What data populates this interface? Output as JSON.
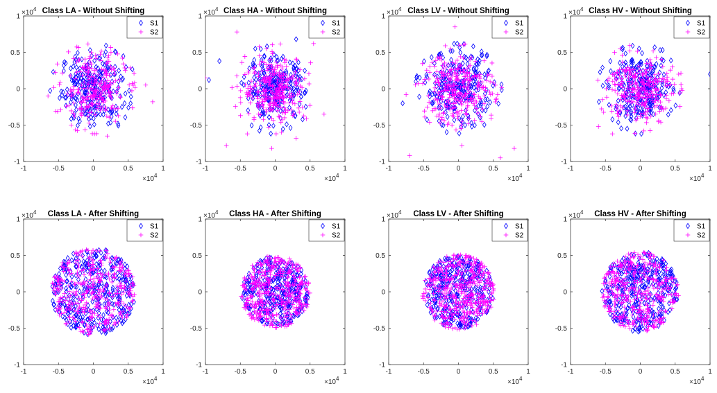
{
  "colors": {
    "S1": "#0000ff",
    "S2": "#ff00ff"
  },
  "chart_data": [
    {
      "type": "scatter",
      "title": "Class LA - Without Shifting",
      "xlim": [
        -1,
        1
      ],
      "ylim": [
        -1,
        1
      ],
      "x_exponent": "4",
      "y_exponent": "4",
      "x_multiplier_text": "×10",
      "y_multiplier_text": "×10",
      "xticks": [
        "-1",
        "-0.5",
        "0",
        "0.5",
        "1"
      ],
      "yticks": [
        "-1",
        "-0.5",
        "0",
        "0.5",
        "1"
      ],
      "legend": {
        "position": "top-right",
        "entries": [
          {
            "label": "S1",
            "marker": "diamond",
            "color": "#0000ff"
          },
          {
            "label": "S2",
            "marker": "plus",
            "color": "#ff00ff"
          }
        ]
      },
      "series": [
        {
          "name": "S1",
          "marker": "diamond",
          "color": "#0000ff",
          "spread": [
            0.55,
            0.6
          ],
          "points": 260,
          "outliers": []
        },
        {
          "name": "S2",
          "marker": "plus",
          "color": "#ff00ff",
          "spread": [
            0.55,
            0.6
          ],
          "points": 260,
          "outliers": [
            [
              0.85,
              -0.18
            ],
            [
              0.75,
              0.05
            ],
            [
              0.2,
              -0.65
            ],
            [
              -0.65,
              -0.1
            ]
          ]
        }
      ]
    },
    {
      "type": "scatter",
      "title": "Class HA - Without Shifting",
      "xlim": [
        -1,
        1
      ],
      "ylim": [
        -1,
        1
      ],
      "x_exponent": "4",
      "y_exponent": "4",
      "x_multiplier_text": "×10",
      "y_multiplier_text": "×10",
      "xticks": [
        "-1",
        "-0.5",
        "0",
        "0.5",
        "1"
      ],
      "yticks": [
        "-1",
        "-0.5",
        "0",
        "0.5",
        "1"
      ],
      "legend": {
        "position": "top-right",
        "entries": [
          {
            "label": "S1",
            "marker": "diamond",
            "color": "#0000ff"
          },
          {
            "label": "S2",
            "marker": "plus",
            "color": "#ff00ff"
          }
        ]
      },
      "series": [
        {
          "name": "S1",
          "marker": "diamond",
          "color": "#0000ff",
          "spread": [
            0.5,
            0.5
          ],
          "points": 260,
          "outliers": [
            [
              -0.8,
              0.38
            ],
            [
              0.3,
              0.68
            ],
            [
              -0.95,
              0.12
            ]
          ]
        },
        {
          "name": "S2",
          "marker": "plus",
          "color": "#ff00ff",
          "spread": [
            0.55,
            0.55
          ],
          "points": 300,
          "outliers": [
            [
              -0.55,
              0.78
            ],
            [
              -0.7,
              -0.78
            ],
            [
              -0.05,
              -0.82
            ],
            [
              0.7,
              -0.35
            ],
            [
              -0.4,
              -0.62
            ],
            [
              0.55,
              0.62
            ],
            [
              0.3,
              -0.68
            ],
            [
              -1.0,
              0.15
            ]
          ]
        }
      ]
    },
    {
      "type": "scatter",
      "title": "Class LV - Without Shifting",
      "xlim": [
        -1,
        1
      ],
      "ylim": [
        -1,
        1
      ],
      "x_exponent": "4",
      "y_exponent": "4",
      "x_multiplier_text": "×10",
      "y_multiplier_text": "×10",
      "xticks": [
        "-1",
        "-0.5",
        "0",
        "0.5",
        "1"
      ],
      "yticks": [
        "-1",
        "-0.5",
        "0",
        "0.5",
        "1"
      ],
      "legend": {
        "position": "top-right",
        "entries": [
          {
            "label": "S1",
            "marker": "diamond",
            "color": "#0000ff"
          },
          {
            "label": "S2",
            "marker": "plus",
            "color": "#ff00ff"
          }
        ]
      },
      "series": [
        {
          "name": "S1",
          "marker": "diamond",
          "color": "#0000ff",
          "spread": [
            0.6,
            0.6
          ],
          "points": 260,
          "outliers": [
            [
              -0.8,
              -0.2
            ]
          ]
        },
        {
          "name": "S2",
          "marker": "plus",
          "color": "#ff00ff",
          "spread": [
            0.6,
            0.6
          ],
          "points": 300,
          "outliers": [
            [
              -0.05,
              0.85
            ],
            [
              -0.7,
              -0.92
            ],
            [
              0.8,
              -0.82
            ],
            [
              0.6,
              -0.95
            ],
            [
              0.05,
              -0.78
            ],
            [
              -0.75,
              -0.08
            ]
          ]
        }
      ]
    },
    {
      "type": "scatter",
      "title": "Class HV - Without Shifting",
      "xlim": [
        -1,
        1
      ],
      "ylim": [
        -1,
        1
      ],
      "x_exponent": "4",
      "y_exponent": "4",
      "x_multiplier_text": "×10",
      "y_multiplier_text": "×10",
      "xticks": [
        "-1",
        "-0.5",
        "0",
        "0.5",
        "1"
      ],
      "yticks": [
        "-1",
        "-0.5",
        "0",
        "0.5",
        "1"
      ],
      "legend": {
        "position": "top-right",
        "entries": [
          {
            "label": "S1",
            "marker": "diamond",
            "color": "#0000ff"
          },
          {
            "label": "S2",
            "marker": "plus",
            "color": "#ff00ff"
          }
        ]
      },
      "series": [
        {
          "name": "S1",
          "marker": "diamond",
          "color": "#0000ff",
          "spread": [
            0.55,
            0.55
          ],
          "points": 260,
          "outliers": [
            [
              1.0,
              0.2
            ]
          ]
        },
        {
          "name": "S2",
          "marker": "plus",
          "color": "#ff00ff",
          "spread": [
            0.55,
            0.55
          ],
          "points": 280,
          "outliers": [
            [
              -0.6,
              -0.52
            ],
            [
              0.55,
              0.2
            ],
            [
              -0.4,
              -0.62
            ],
            [
              0.05,
              -0.58
            ]
          ]
        }
      ]
    },
    {
      "type": "scatter",
      "title": "Class LA - After Shifting",
      "xlim": [
        -1,
        1
      ],
      "ylim": [
        -1,
        1
      ],
      "x_exponent": "4",
      "y_exponent": "4",
      "x_multiplier_text": "×10",
      "y_multiplier_text": "×10",
      "xticks": [
        "-1",
        "-0.5",
        "0",
        "0.5",
        "1"
      ],
      "yticks": [
        "-1",
        "-0.5",
        "0",
        "0.5",
        "1"
      ],
      "legend": {
        "position": "top-right",
        "entries": [
          {
            "label": "S1",
            "marker": "diamond",
            "color": "#0000ff"
          },
          {
            "label": "S2",
            "marker": "plus",
            "color": "#ff00ff"
          }
        ]
      },
      "series": [
        {
          "name": "S1",
          "marker": "diamond",
          "color": "#0000ff",
          "radius": 0.6,
          "points": 360
        },
        {
          "name": "S2",
          "marker": "plus",
          "color": "#ff00ff",
          "radius": 0.6,
          "points": 360
        }
      ]
    },
    {
      "type": "scatter",
      "title": "Class HA - After Shifting",
      "xlim": [
        -1,
        1
      ],
      "ylim": [
        -1,
        1
      ],
      "x_exponent": "4",
      "y_exponent": "4",
      "x_multiplier_text": "×10",
      "y_multiplier_text": "×10",
      "xticks": [
        "-1",
        "-0.5",
        "0",
        "0.5",
        "1"
      ],
      "yticks": [
        "-1",
        "-0.5",
        "0",
        "0.5",
        "1"
      ],
      "legend": {
        "position": "top-right",
        "entries": [
          {
            "label": "S1",
            "marker": "diamond",
            "color": "#0000ff"
          },
          {
            "label": "S2",
            "marker": "plus",
            "color": "#ff00ff"
          }
        ]
      },
      "series": [
        {
          "name": "S1",
          "marker": "diamond",
          "color": "#0000ff",
          "radius": 0.48,
          "points": 340
        },
        {
          "name": "S2",
          "marker": "plus",
          "color": "#ff00ff",
          "radius": 0.5,
          "points": 420
        }
      ]
    },
    {
      "type": "scatter",
      "title": "Class LV - After Shifting",
      "xlim": [
        -1,
        1
      ],
      "ylim": [
        -1,
        1
      ],
      "x_exponent": "4",
      "y_exponent": "4",
      "x_multiplier_text": "×10",
      "y_multiplier_text": "×10",
      "xticks": [
        "-1",
        "-0.5",
        "0",
        "0.5",
        "1"
      ],
      "yticks": [
        "-1",
        "-0.5",
        "0",
        "0.5",
        "1"
      ],
      "legend": {
        "position": "top-right",
        "entries": [
          {
            "label": "S1",
            "marker": "diamond",
            "color": "#0000ff"
          },
          {
            "label": "S2",
            "marker": "plus",
            "color": "#ff00ff"
          }
        ]
      },
      "series": [
        {
          "name": "S1",
          "marker": "diamond",
          "color": "#0000ff",
          "radius": 0.5,
          "points": 340
        },
        {
          "name": "S2",
          "marker": "plus",
          "color": "#ff00ff",
          "radius": 0.52,
          "points": 420
        }
      ]
    },
    {
      "type": "scatter",
      "title": "Class HV - After Shifting",
      "xlim": [
        -1,
        1
      ],
      "ylim": [
        -1,
        1
      ],
      "x_exponent": "4",
      "y_exponent": "4",
      "x_multiplier_text": "×10",
      "y_multiplier_text": "×10",
      "xticks": [
        "-1",
        "-0.5",
        "0",
        "0.5",
        "1"
      ],
      "yticks": [
        "-1",
        "-0.5",
        "0",
        "0.5",
        "1"
      ],
      "legend": {
        "position": "top-right",
        "entries": [
          {
            "label": "S1",
            "marker": "diamond",
            "color": "#0000ff"
          },
          {
            "label": "S2",
            "marker": "plus",
            "color": "#ff00ff"
          }
        ]
      },
      "series": [
        {
          "name": "S1",
          "marker": "diamond",
          "color": "#0000ff",
          "radius": 0.55,
          "points": 360
        },
        {
          "name": "S2",
          "marker": "plus",
          "color": "#ff00ff",
          "radius": 0.55,
          "points": 380
        }
      ]
    }
  ]
}
